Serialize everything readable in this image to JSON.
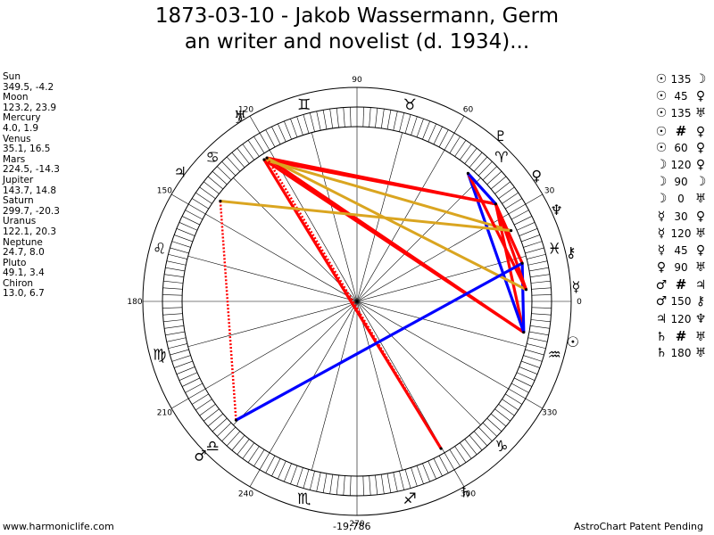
{
  "title": {
    "line1": "1873-03-10 - Jakob Wassermann, Germ",
    "line2": "an writer and novelist (d. 1934)..."
  },
  "planets": [
    {
      "name": "Sun",
      "coords": "349.5, -4.2",
      "glyph": "☉"
    },
    {
      "name": "Moon",
      "coords": "123.2, 23.9",
      "glyph": "☽"
    },
    {
      "name": "Mercury",
      "coords": "4.0, 1.9",
      "glyph": "☿"
    },
    {
      "name": "Venus",
      "coords": "35.1, 16.5",
      "glyph": "♀"
    },
    {
      "name": "Mars",
      "coords": "224.5, -14.3",
      "glyph": "♂"
    },
    {
      "name": "Jupiter",
      "coords": "143.7, 14.8",
      "glyph": "♃"
    },
    {
      "name": "Saturn",
      "coords": "299.7, -20.3",
      "glyph": "♄"
    },
    {
      "name": "Uranus",
      "coords": "122.1, 20.3",
      "glyph": "♅"
    },
    {
      "name": "Neptune",
      "coords": "24.7, 8.0",
      "glyph": "♆"
    },
    {
      "name": "Pluto",
      "coords": "49.1, 3.4",
      "glyph": "♇"
    },
    {
      "name": "Chiron",
      "coords": "13.0, 6.7",
      "glyph": "⚷"
    }
  ],
  "aspects": [
    {
      "p1": "☉",
      "a": "135",
      "p2": "☽"
    },
    {
      "p1": "☉",
      "a": "45",
      "p2": "♀"
    },
    {
      "p1": "☉",
      "a": "135",
      "p2": "♅"
    },
    {
      "p1": "☉",
      "a": "#",
      "p2": "♀"
    },
    {
      "p1": "☉",
      "a": "60",
      "p2": "♀"
    },
    {
      "p1": "☽",
      "a": "120",
      "p2": "♀"
    },
    {
      "p1": "☽",
      "a": "90",
      "p2": "☽"
    },
    {
      "p1": "☽",
      "a": "0",
      "p2": "♅"
    },
    {
      "p1": "☿",
      "a": "30",
      "p2": "♀"
    },
    {
      "p1": "☿",
      "a": "120",
      "p2": "♅"
    },
    {
      "p1": "☿",
      "a": "45",
      "p2": "♀"
    },
    {
      "p1": "♀",
      "a": "90",
      "p2": "♅"
    },
    {
      "p1": "♂",
      "a": "#",
      "p2": "♃"
    },
    {
      "p1": "♂",
      "a": "150",
      "p2": "⚷"
    },
    {
      "p1": "♃",
      "a": "120",
      "p2": "♆"
    },
    {
      "p1": "♄",
      "a": "#",
      "p2": "♅"
    },
    {
      "p1": "♄",
      "a": "180",
      "p2": "♅"
    }
  ],
  "wheel": {
    "degree_labels": [
      "0",
      "30",
      "60",
      "90",
      "120",
      "150",
      "180",
      "210",
      "240",
      "270",
      "300",
      "330"
    ],
    "zodiac": [
      "♓",
      "♈",
      "♉",
      "♊",
      "♋",
      "♌",
      "♍",
      "♎",
      "♏",
      "♐",
      "♑",
      "♒"
    ],
    "planet_positions": [
      {
        "glyph": "☉",
        "lon": 349.5
      },
      {
        "glyph": "☽",
        "lon": 123.2
      },
      {
        "glyph": "☿",
        "lon": 4.0
      },
      {
        "glyph": "♀",
        "lon": 35.1
      },
      {
        "glyph": "♂",
        "lon": 224.5
      },
      {
        "glyph": "♃",
        "lon": 143.7
      },
      {
        "glyph": "♄",
        "lon": 299.7
      },
      {
        "glyph": "♅",
        "lon": 122.1
      },
      {
        "glyph": "♆",
        "lon": 24.7
      },
      {
        "glyph": "♇",
        "lon": 49.1
      },
      {
        "glyph": "⚷",
        "lon": 13.0
      }
    ],
    "aspect_lines": [
      {
        "from": 349.5,
        "to": 123.2,
        "color": "#ff0000",
        "style": "solid"
      },
      {
        "from": 349.5,
        "to": 35.1,
        "color": "#ff0000",
        "style": "solid"
      },
      {
        "from": 349.5,
        "to": 122.1,
        "color": "#ff0000",
        "style": "solid"
      },
      {
        "from": 349.5,
        "to": 49.1,
        "color": "#0000ff",
        "style": "solid"
      },
      {
        "from": 349.5,
        "to": 13.0,
        "color": "#0000ff",
        "style": "solid"
      },
      {
        "from": 123.2,
        "to": 35.1,
        "color": "#ff0000",
        "style": "solid"
      },
      {
        "from": 123.2,
        "to": 24.7,
        "color": "#daa520",
        "style": "solid"
      },
      {
        "from": 123.2,
        "to": 299.7,
        "color": "#ff0000",
        "style": "solid"
      },
      {
        "from": 122.1,
        "to": 35.1,
        "color": "#ff0000",
        "style": "solid"
      },
      {
        "from": 122.1,
        "to": 4.0,
        "color": "#daa520",
        "style": "solid"
      },
      {
        "from": 122.1,
        "to": 299.7,
        "color": "#ff0000",
        "style": "dotted"
      },
      {
        "from": 4.0,
        "to": 35.1,
        "color": "#ff0000",
        "style": "solid"
      },
      {
        "from": 4.0,
        "to": 49.1,
        "color": "#ff0000",
        "style": "solid"
      },
      {
        "from": 35.1,
        "to": 13.0,
        "color": "#ff0000",
        "style": "solid"
      },
      {
        "from": 49.1,
        "to": 35.1,
        "color": "#0000ff",
        "style": "solid"
      },
      {
        "from": 143.7,
        "to": 24.7,
        "color": "#daa520",
        "style": "solid"
      },
      {
        "from": 143.7,
        "to": 224.5,
        "color": "#ff0000",
        "style": "dotted"
      },
      {
        "from": 224.5,
        "to": 13.0,
        "color": "#0000ff",
        "style": "solid"
      }
    ],
    "bottom_value": "-19,786"
  },
  "footer": {
    "left": "www.harmoniclife.com",
    "right": "AstroChart Patent Pending"
  }
}
